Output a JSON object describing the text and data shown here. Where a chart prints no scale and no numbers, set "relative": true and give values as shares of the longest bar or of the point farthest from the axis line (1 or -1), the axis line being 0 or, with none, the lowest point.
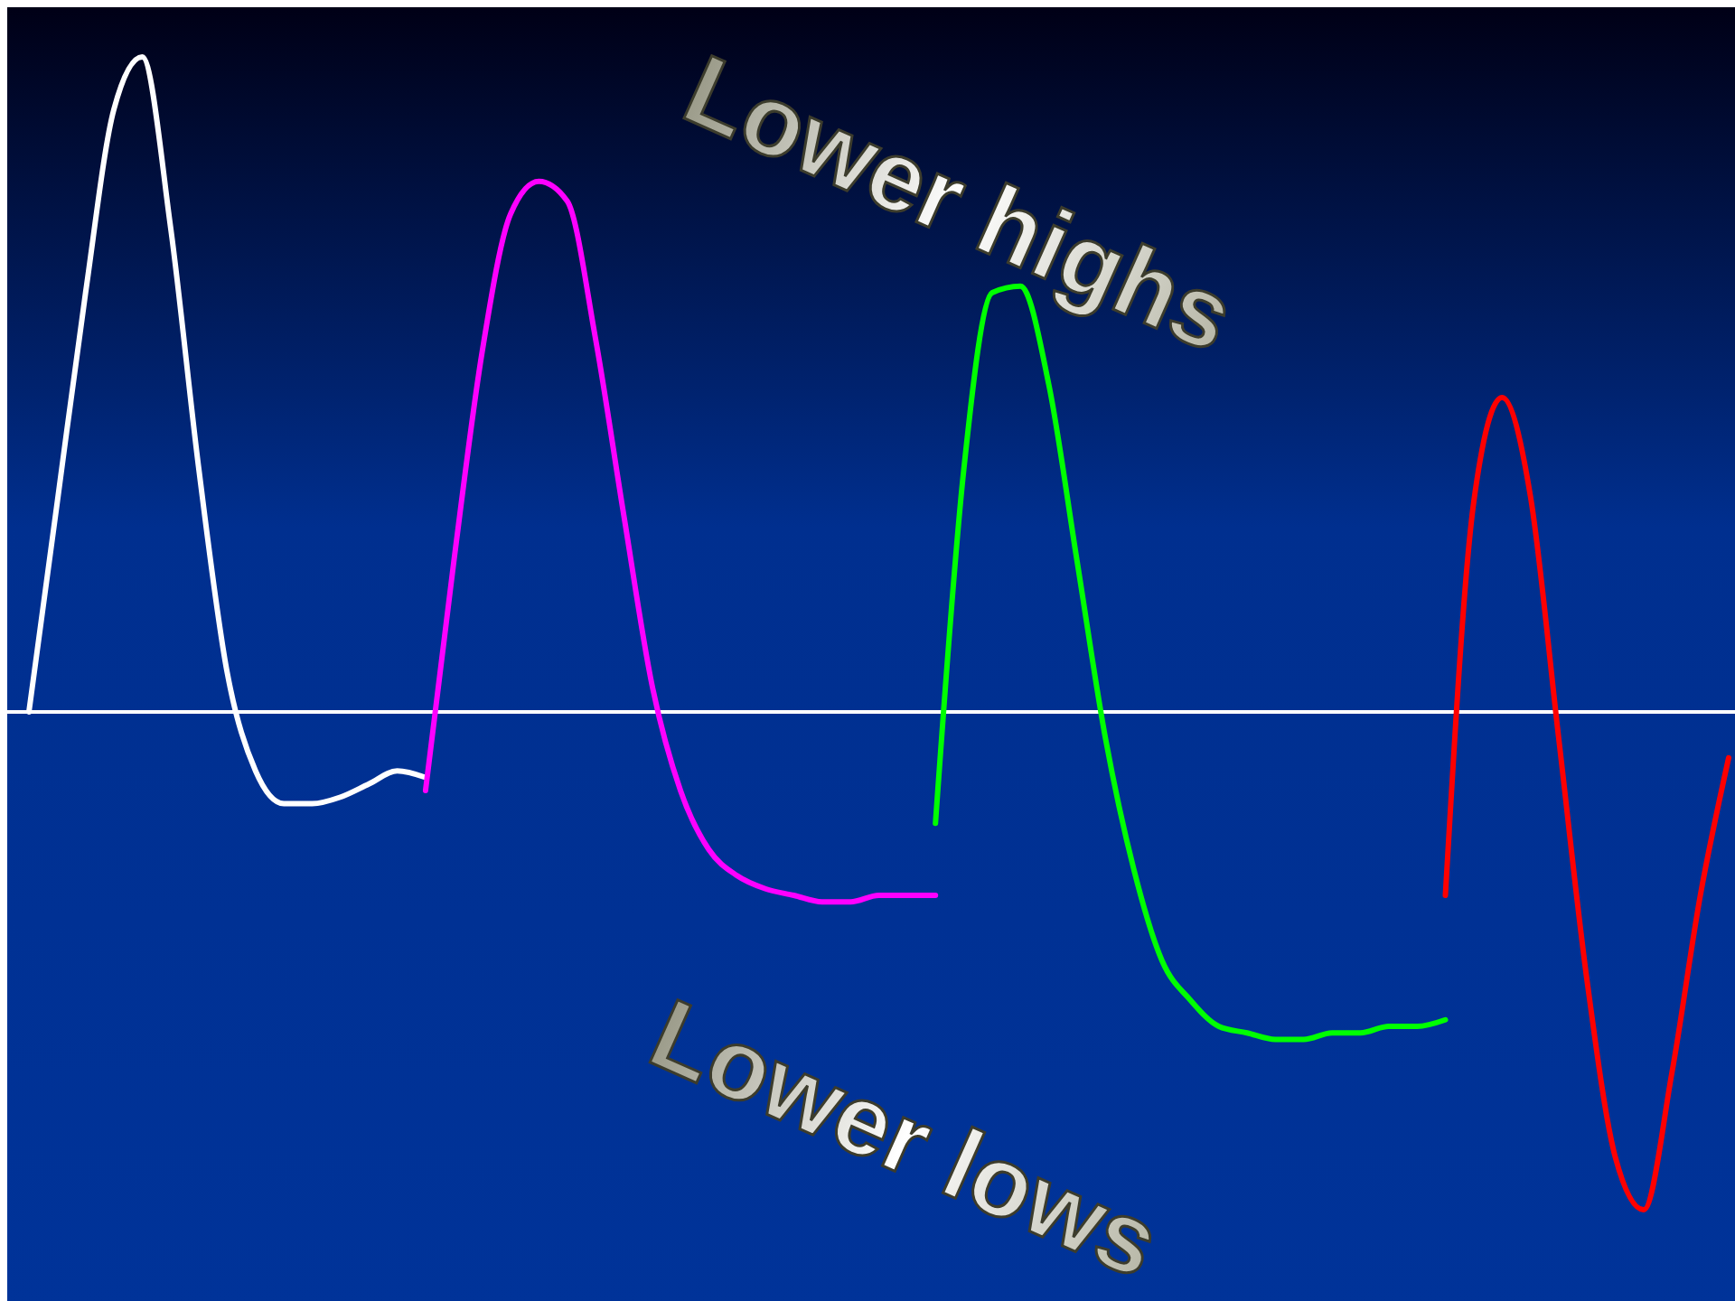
{
  "chart_data": {
    "type": "line",
    "relative": true,
    "categories": [
      null,
      null,
      null,
      null,
      null,
      null,
      null,
      null,
      null,
      null,
      null,
      null,
      null,
      null,
      null,
      null,
      null,
      null,
      null,
      null,
      null,
      null,
      null,
      null,
      null,
      null,
      null,
      null,
      null,
      null,
      null,
      null,
      null,
      null,
      null,
      null,
      null,
      null,
      null,
      null,
      null,
      null,
      null,
      null,
      null,
      null,
      null,
      null,
      null,
      null,
      null,
      null,
      null,
      null,
      null,
      null,
      null,
      null,
      null,
      null,
      null
    ],
    "series": [
      {
        "color": "#ffffff",
        "values": [
          0,
          0.32,
          0.64,
          0.92,
          1,
          0.74,
          0.37,
          0.06,
          -0.09,
          -0.14,
          -0.14,
          -0.13,
          -0.11,
          -0.09,
          -0.1,
          null,
          null,
          null,
          null,
          null,
          null,
          null,
          null,
          null,
          null,
          null,
          null,
          null,
          null,
          null,
          null,
          null,
          null,
          null,
          null,
          null,
          null,
          null,
          null,
          null,
          null,
          null,
          null,
          null,
          null,
          null,
          null,
          null,
          null,
          null,
          null,
          null,
          null,
          null,
          null,
          null,
          null,
          null,
          null,
          null,
          null
        ]
      },
      {
        "color": "#ff00ff",
        "values": [
          null,
          null,
          null,
          null,
          null,
          null,
          null,
          null,
          null,
          null,
          null,
          null,
          null,
          null,
          -0.12,
          0.23,
          0.55,
          0.76,
          0.81,
          0.78,
          0.57,
          0.3,
          0.04,
          -0.12,
          -0.21,
          -0.25,
          -0.27,
          -0.28,
          -0.29,
          -0.29,
          -0.28,
          -0.28,
          -0.28,
          null,
          null,
          null,
          null,
          null,
          null,
          null,
          null,
          null,
          null,
          null,
          null,
          null,
          null,
          null,
          null,
          null,
          null,
          null,
          null,
          null,
          null,
          null,
          null,
          null,
          null,
          null,
          null
        ]
      },
      {
        "color": "#00ff00",
        "values": [
          null,
          null,
          null,
          null,
          null,
          null,
          null,
          null,
          null,
          null,
          null,
          null,
          null,
          null,
          null,
          null,
          null,
          null,
          null,
          null,
          null,
          null,
          null,
          null,
          null,
          null,
          null,
          null,
          null,
          null,
          null,
          null,
          -0.17,
          0.37,
          0.64,
          0.65,
          0.5,
          0.23,
          -0.04,
          -0.24,
          -0.38,
          -0.44,
          -0.48,
          -0.49,
          -0.5,
          -0.5,
          -0.49,
          -0.49,
          -0.48,
          -0.48,
          -0.47,
          null,
          null,
          null,
          null,
          null,
          null,
          null,
          null,
          null,
          null
        ]
      },
      {
        "color": "#ff0000",
        "values": [
          null,
          null,
          null,
          null,
          null,
          null,
          null,
          null,
          null,
          null,
          null,
          null,
          null,
          null,
          null,
          null,
          null,
          null,
          null,
          null,
          null,
          null,
          null,
          null,
          null,
          null,
          null,
          null,
          null,
          null,
          null,
          null,
          null,
          null,
          null,
          null,
          null,
          null,
          null,
          null,
          null,
          null,
          null,
          null,
          null,
          null,
          null,
          null,
          null,
          null,
          -0.28,
          0.32,
          0.48,
          0.33,
          -0.04,
          -0.41,
          -0.68,
          -0.76,
          -0.55,
          -0.28,
          -0.07
        ]
      }
    ],
    "annotations": [
      "Lower highs",
      "Lower lows"
    ]
  }
}
